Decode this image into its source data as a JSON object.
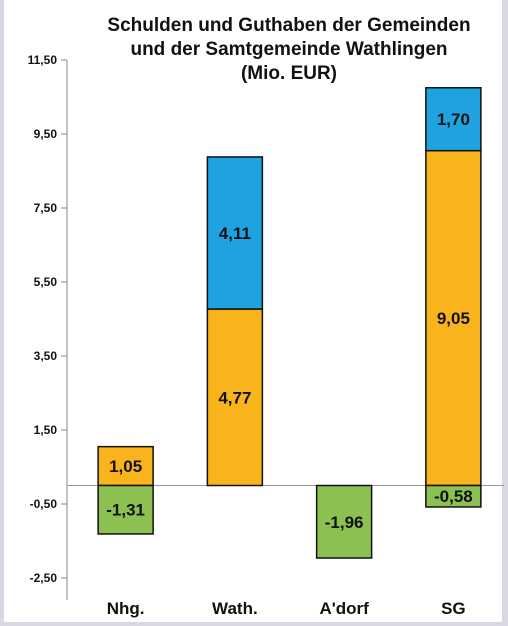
{
  "chart_data": {
    "type": "bar",
    "title": "Schulden und Guthaben der Gemeinden und der Samtgemeinde Wathlingen (Mio. EUR)",
    "title_lines": [
      "Schulden und Guthaben der Gemeinden",
      "und der Samtgemeinde Wathlingen",
      "(Mio. EUR)"
    ],
    "xlabel": "",
    "ylabel": "",
    "categories": [
      "Nhg.",
      "Wath.",
      "A'dorf",
      "SG"
    ],
    "ylim": [
      -2.5,
      11.5
    ],
    "yticks": [
      -2.5,
      -0.5,
      1.5,
      3.5,
      5.5,
      7.5,
      9.5,
      11.5
    ],
    "ytick_labels": [
      "-2,50",
      "-0,50",
      "1,50",
      "3,50",
      "5,50",
      "7,50",
      "9,50",
      "11,50"
    ],
    "stacking": "stacked",
    "grid": false,
    "legend": "none",
    "series": [
      {
        "color": "#f9b41c",
        "values": [
          1.05,
          4.77,
          null,
          9.05
        ],
        "labels": [
          "1,05",
          "4,77",
          "",
          "9,05"
        ]
      },
      {
        "color": "#1fa3e0",
        "values": [
          null,
          4.11,
          null,
          1.7
        ],
        "labels": [
          "",
          "4,11",
          "",
          "1,70"
        ]
      },
      {
        "color": "#8cc152",
        "values": [
          -1.31,
          null,
          -1.96,
          -0.58
        ],
        "labels": [
          "-1,31",
          "",
          "-1,96",
          "-0,58"
        ]
      }
    ]
  }
}
